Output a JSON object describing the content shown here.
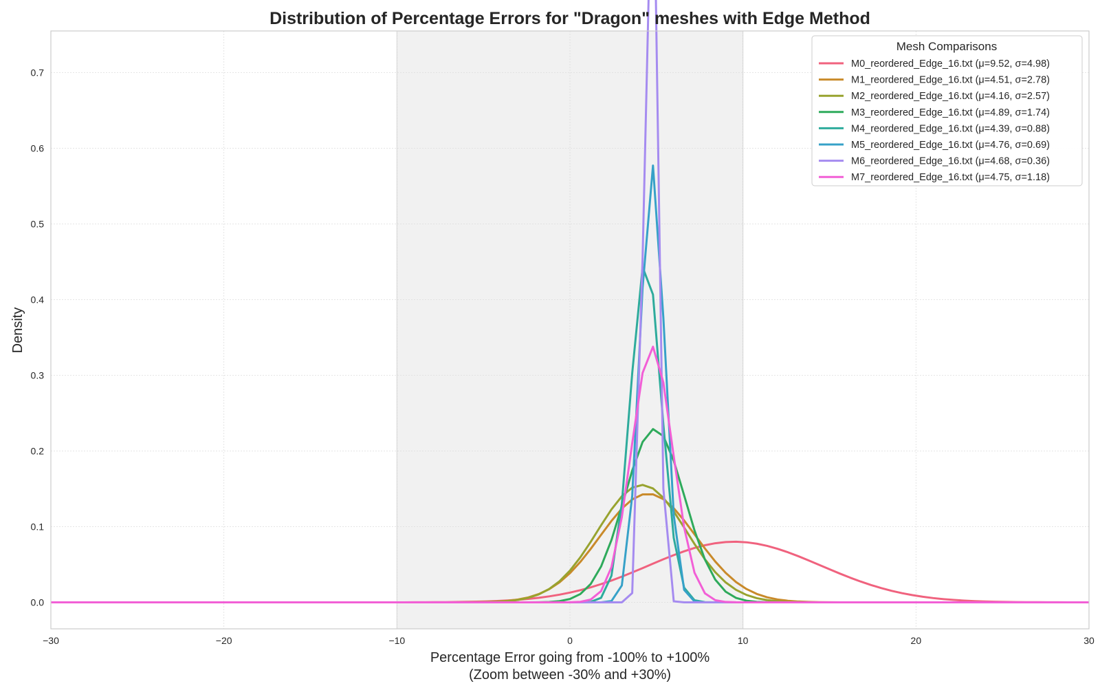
{
  "chart_data": {
    "type": "line",
    "title": "Distribution of Percentage Errors for \"Dragon\" meshes with Edge Method",
    "xlabel_line1": "Percentage Error going from -100% to +100%",
    "xlabel_line2": "(Zoom between -30% and +30%)",
    "ylabel": "Density",
    "xlim": [
      -30,
      30
    ],
    "ylim": [
      -0.035,
      0.755
    ],
    "xticks": [
      -30,
      -20,
      -10,
      0,
      10,
      20,
      30
    ],
    "xtick_labels": [
      "−30",
      "−20",
      "−10",
      "0",
      "10",
      "20",
      "30"
    ],
    "yticks": [
      0.0,
      0.1,
      0.2,
      0.3,
      0.4,
      0.5,
      0.6,
      0.7
    ],
    "ytick_labels": [
      "0.0",
      "0.1",
      "0.2",
      "0.3",
      "0.4",
      "0.5",
      "0.6",
      "0.7"
    ],
    "grid": true,
    "shaded_region": [
      -10,
      10
    ],
    "legend_title": "Mesh Comparisons",
    "legend_position": "top-right",
    "series": [
      {
        "name": "M0_reordered_Edge_16.txt (μ=9.52, σ=4.98)",
        "mu": 9.52,
        "sigma": 4.98,
        "color": "#f0627e"
      },
      {
        "name": "M1_reordered_Edge_16.txt (μ=4.51, σ=2.78)",
        "mu": 4.51,
        "sigma": 2.78,
        "color": "#c98a2a"
      },
      {
        "name": "M2_reordered_Edge_16.txt (μ=4.16, σ=2.57)",
        "mu": 4.16,
        "sigma": 2.57,
        "color": "#98a32f"
      },
      {
        "name": "M3_reordered_Edge_16.txt (μ=4.89, σ=1.74)",
        "mu": 4.89,
        "sigma": 1.74,
        "color": "#2eaa5b"
      },
      {
        "name": "M4_reordered_Edge_16.txt (μ=4.39, σ=0.88)",
        "mu": 4.39,
        "sigma": 0.88,
        "color": "#2eab9c"
      },
      {
        "name": "M5_reordered_Edge_16.txt (μ=4.76, σ=0.69)",
        "mu": 4.76,
        "sigma": 0.69,
        "color": "#36a1c8"
      },
      {
        "name": "M6_reordered_Edge_16.txt (μ=4.68, σ=0.36)",
        "mu": 4.68,
        "sigma": 0.36,
        "color": "#a58bf0"
      },
      {
        "name": "M7_reordered_Edge_16.txt (μ=4.75, σ=1.18)",
        "mu": 4.75,
        "sigma": 1.18,
        "color": "#f25fd6"
      }
    ]
  }
}
